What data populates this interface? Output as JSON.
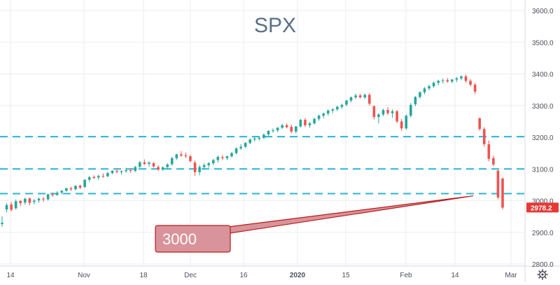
{
  "chart_data": {
    "type": "candlestick",
    "title": "SPX",
    "ylim": [
      2800,
      3650
    ],
    "y_ticks": [
      2800,
      2900,
      3000,
      3100,
      3200,
      3300,
      3400,
      3500,
      3600
    ],
    "x_ticks": [
      "14",
      "Nov",
      "18",
      "Dec",
      "16",
      "2020",
      "15",
      "Feb",
      "14",
      "Mar"
    ],
    "horizontal_levels": [
      3022,
      3100,
      3202
    ],
    "last_price_label": "2978.2",
    "last_price": 2978.2,
    "annotation": {
      "text": "3000",
      "target_price": 3015
    },
    "colors": {
      "up": "#26a69a",
      "down": "#ef5350",
      "level_line": "#29b6d6",
      "callout_fill": "#d9939a",
      "callout_stroke": "#b71c1c",
      "badge": "#e53935"
    },
    "candles": [
      [
        2926,
        2951,
        2918,
        2930
      ],
      [
        2972,
        2992,
        2963,
        2986
      ],
      [
        2988,
        2996,
        2966,
        2971
      ],
      [
        2976,
        3004,
        2972,
        2998
      ],
      [
        2999,
        3002,
        2983,
        2992
      ],
      [
        2994,
        3009,
        2987,
        3006
      ],
      [
        3007,
        3010,
        2985,
        2993
      ],
      [
        2996,
        3005,
        2988,
        3000
      ],
      [
        3001,
        3010,
        2993,
        3006
      ],
      [
        3006,
        3012,
        2996,
        3004
      ],
      [
        3004,
        3022,
        3000,
        3020
      ],
      [
        3019,
        3026,
        3012,
        3017
      ],
      [
        3018,
        3030,
        3015,
        3025
      ],
      [
        3025,
        3033,
        3020,
        3031
      ],
      [
        3031,
        3041,
        3028,
        3039
      ],
      [
        3039,
        3044,
        3030,
        3036
      ],
      [
        3036,
        3048,
        3032,
        3047
      ],
      [
        3047,
        3050,
        3036,
        3041
      ],
      [
        3043,
        3067,
        3040,
        3066
      ],
      [
        3066,
        3078,
        3060,
        3074
      ],
      [
        3075,
        3080,
        3068,
        3072
      ],
      [
        3073,
        3082,
        3066,
        3078
      ],
      [
        3078,
        3086,
        3072,
        3076
      ],
      [
        3077,
        3091,
        3074,
        3087
      ],
      [
        3087,
        3096,
        3083,
        3094
      ],
      [
        3094,
        3100,
        3086,
        3091
      ],
      [
        3090,
        3095,
        3082,
        3093
      ],
      [
        3093,
        3104,
        3088,
        3096
      ],
      [
        3096,
        3102,
        3088,
        3094
      ],
      [
        3094,
        3110,
        3090,
        3106
      ],
      [
        3107,
        3125,
        3103,
        3121
      ],
      [
        3121,
        3130,
        3112,
        3116
      ],
      [
        3116,
        3124,
        3108,
        3120
      ],
      [
        3118,
        3122,
        3104,
        3108
      ],
      [
        3106,
        3112,
        3093,
        3098
      ],
      [
        3098,
        3108,
        3094,
        3105
      ],
      [
        3106,
        3118,
        3100,
        3114
      ],
      [
        3115,
        3138,
        3110,
        3134
      ],
      [
        3134,
        3148,
        3128,
        3146
      ],
      [
        3146,
        3156,
        3138,
        3142
      ],
      [
        3143,
        3152,
        3134,
        3140
      ],
      [
        3140,
        3145,
        3120,
        3125
      ],
      [
        3120,
        3126,
        3078,
        3090
      ],
      [
        3090,
        3112,
        3080,
        3106
      ],
      [
        3106,
        3118,
        3098,
        3112
      ],
      [
        3112,
        3122,
        3104,
        3118
      ],
      [
        3118,
        3132,
        3112,
        3128
      ],
      [
        3128,
        3142,
        3120,
        3138
      ],
      [
        3137,
        3144,
        3128,
        3134
      ],
      [
        3134,
        3142,
        3128,
        3140
      ],
      [
        3140,
        3154,
        3136,
        3150
      ],
      [
        3150,
        3168,
        3146,
        3165
      ],
      [
        3165,
        3178,
        3160,
        3170
      ],
      [
        3170,
        3185,
        3166,
        3182
      ],
      [
        3182,
        3196,
        3178,
        3193
      ],
      [
        3193,
        3200,
        3186,
        3196
      ],
      [
        3195,
        3201,
        3190,
        3198
      ],
      [
        3198,
        3212,
        3194,
        3208
      ],
      [
        3209,
        3222,
        3204,
        3220
      ],
      [
        3220,
        3228,
        3214,
        3222
      ],
      [
        3222,
        3232,
        3216,
        3230
      ],
      [
        3230,
        3242,
        3226,
        3238
      ],
      [
        3238,
        3244,
        3228,
        3232
      ],
      [
        3233,
        3240,
        3212,
        3218
      ],
      [
        3218,
        3236,
        3212,
        3234
      ],
      [
        3234,
        3258,
        3230,
        3255
      ],
      [
        3255,
        3260,
        3232,
        3238
      ],
      [
        3238,
        3248,
        3230,
        3244
      ],
      [
        3244,
        3262,
        3240,
        3258
      ],
      [
        3258,
        3272,
        3252,
        3268
      ],
      [
        3268,
        3278,
        3260,
        3275
      ],
      [
        3275,
        3288,
        3268,
        3284
      ],
      [
        3284,
        3292,
        3276,
        3288
      ],
      [
        3288,
        3300,
        3282,
        3296
      ],
      [
        3296,
        3306,
        3290,
        3302
      ],
      [
        3303,
        3318,
        3298,
        3316
      ],
      [
        3316,
        3329,
        3310,
        3326
      ],
      [
        3326,
        3338,
        3320,
        3332
      ],
      [
        3332,
        3337,
        3322,
        3326
      ],
      [
        3326,
        3338,
        3320,
        3334
      ],
      [
        3334,
        3340,
        3300,
        3306
      ],
      [
        3298,
        3300,
        3256,
        3264
      ],
      [
        3264,
        3276,
        3244,
        3272
      ],
      [
        3272,
        3290,
        3266,
        3286
      ],
      [
        3286,
        3295,
        3270,
        3276
      ],
      [
        3276,
        3288,
        3262,
        3282
      ],
      [
        3282,
        3286,
        3244,
        3250
      ],
      [
        3250,
        3258,
        3220,
        3228
      ],
      [
        3228,
        3272,
        3224,
        3268
      ],
      [
        3268,
        3308,
        3262,
        3302
      ],
      [
        3304,
        3330,
        3298,
        3327
      ],
      [
        3327,
        3345,
        3322,
        3342
      ],
      [
        3342,
        3358,
        3336,
        3354
      ],
      [
        3354,
        3366,
        3348,
        3361
      ],
      [
        3361,
        3376,
        3356,
        3372
      ],
      [
        3372,
        3382,
        3364,
        3378
      ],
      [
        3378,
        3385,
        3370,
        3380
      ],
      [
        3380,
        3387,
        3372,
        3376
      ],
      [
        3376,
        3384,
        3370,
        3382
      ],
      [
        3382,
        3390,
        3374,
        3386
      ],
      [
        3386,
        3396,
        3380,
        3392
      ],
      [
        3392,
        3398,
        3372,
        3378
      ],
      [
        3378,
        3384,
        3360,
        3366
      ],
      [
        3366,
        3372,
        3336,
        3344
      ],
      [
        3260,
        3262,
        3220,
        3226
      ],
      [
        3226,
        3232,
        3170,
        3178
      ],
      [
        3178,
        3190,
        3124,
        3132
      ],
      [
        3134,
        3142,
        3108,
        3114
      ],
      [
        3095,
        3097,
        3004,
        3010
      ],
      [
        3070,
        3072,
        2972,
        2978
      ]
    ]
  },
  "settings": {
    "icon": "gear-icon"
  }
}
